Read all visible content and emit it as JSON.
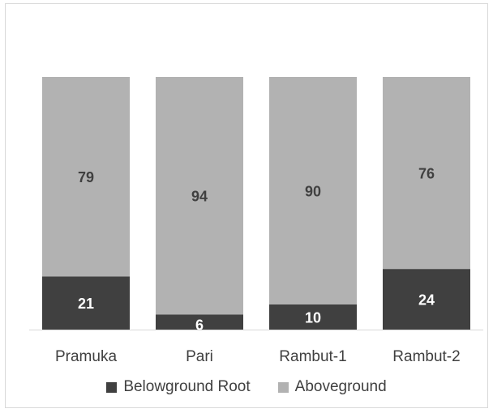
{
  "chart_data": {
    "type": "bar",
    "stacked": true,
    "categories": [
      "Pramuka",
      "Pari",
      "Rambut-1",
      "Rambut-2"
    ],
    "series": [
      {
        "name": "Belowground Root",
        "values": [
          21,
          6,
          10,
          24
        ],
        "color": "#404040"
      },
      {
        "name": "Aboveground",
        "values": [
          79,
          94,
          90,
          76
        ],
        "color": "#b2b2b2"
      }
    ],
    "ylim": [
      0,
      100
    ],
    "grid": false,
    "legend_position": "bottom",
    "data_labels": true
  }
}
